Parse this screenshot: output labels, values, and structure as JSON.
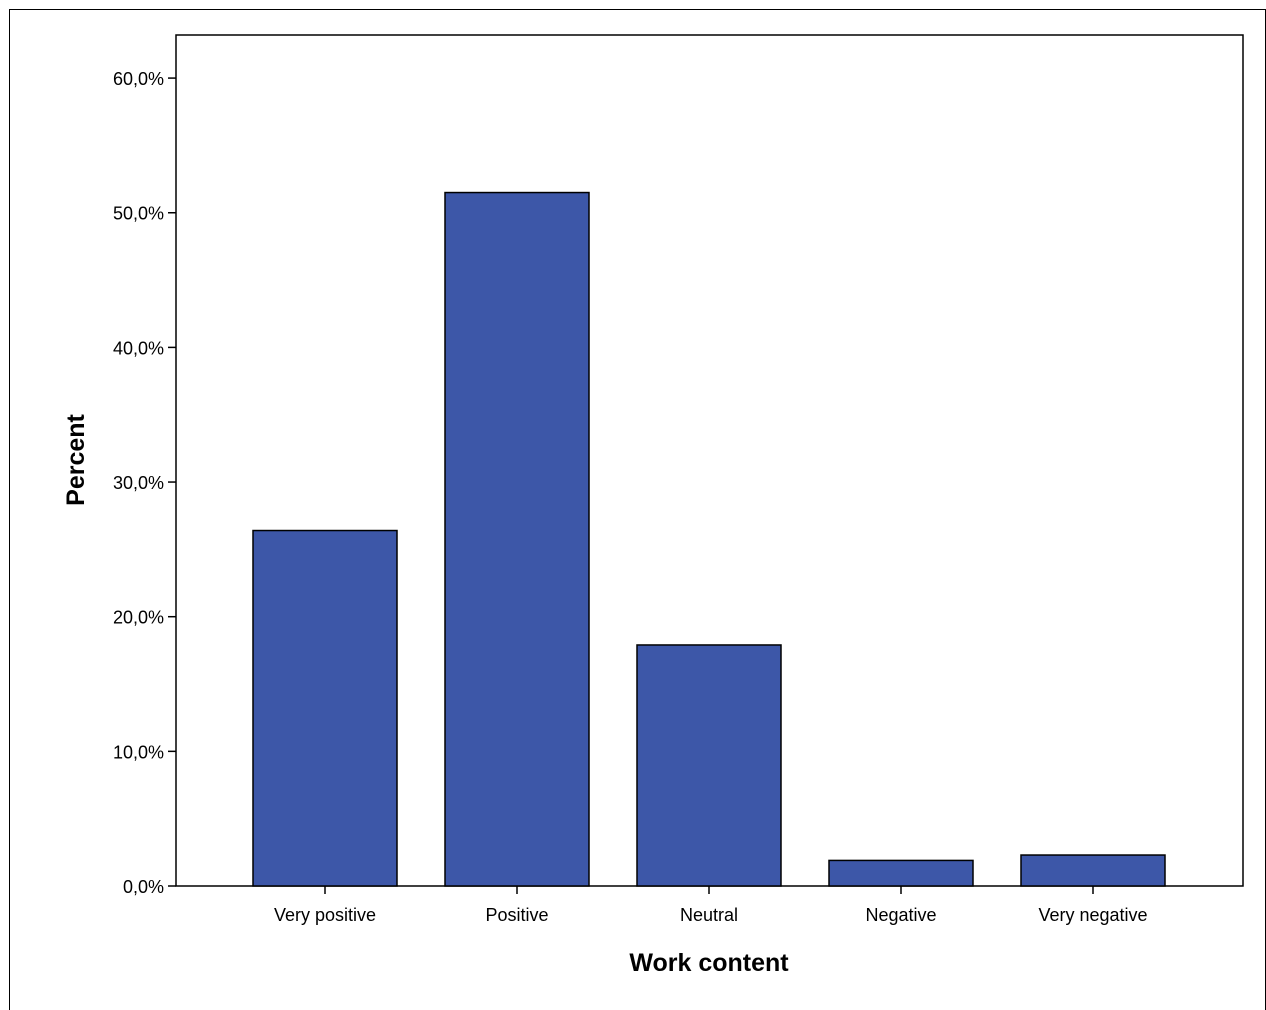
{
  "chart_data": {
    "type": "bar",
    "title": "",
    "xlabel": "Work content",
    "ylabel": "Percent",
    "categories": [
      "Very positive",
      "Positive",
      "Neutral",
      "Negative",
      "Very negative"
    ],
    "values": [
      26.4,
      51.5,
      17.9,
      1.9,
      2.3
    ],
    "ylim": [
      0,
      63.2
    ],
    "yticks": [
      0,
      10,
      20,
      30,
      40,
      50,
      60
    ],
    "ytick_labels": [
      "0,0%",
      "10,0%",
      "20,0%",
      "30,0%",
      "40,0%",
      "50,0%",
      "60,0%"
    ],
    "bar_color": "#3d57a8",
    "grid": false,
    "legend": "none"
  }
}
